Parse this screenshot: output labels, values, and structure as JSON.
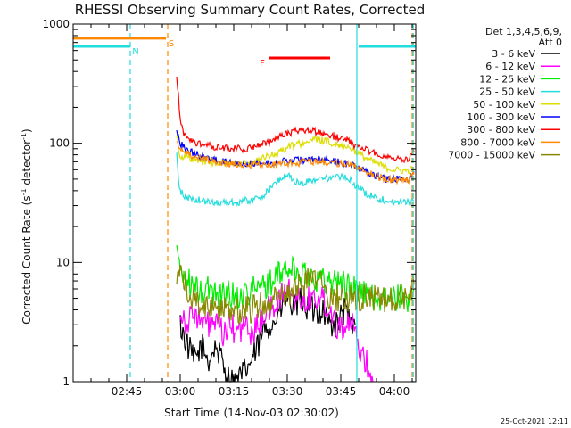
{
  "chart_data": {
    "type": "line",
    "title": "RHESSI Observing Summary Count Rates, Corrected",
    "xlabel": "Start Time (14-Nov-03 02:30:02)",
    "ylabel_main": "Corrected Count Rate (s",
    "ylabel_sup1": "-1",
    "ylabel_mid": " detector",
    "ylabel_sup2": "-1",
    "ylabel_end": ")",
    "yscale": "log",
    "ylim": [
      1,
      1000
    ],
    "xlim_minutes": [
      0,
      96
    ],
    "x_tick_labels": [
      "02:45",
      "03:00",
      "03:15",
      "03:30",
      "03:45",
      "04:00"
    ],
    "x_tick_minutes": [
      15,
      30,
      45,
      60,
      75,
      90
    ],
    "y_tick_labels": [
      "1",
      "10",
      "100",
      "1000"
    ],
    "y_tick_values": [
      1,
      10,
      100,
      1000
    ],
    "legend_header1": "Det 1,3,4,5,6,9,",
    "legend_header2": "Att 0",
    "legend_placement": "right-outside",
    "footer_date": "25-Oct-2021 12:11",
    "flag_bars": [
      {
        "label": "N",
        "color": "#22dddd",
        "segments": [
          [
            0,
            16
          ],
          [
            80,
            96
          ]
        ],
        "y": 650
      },
      {
        "label": "S",
        "color": "#ff8800",
        "segments": [
          [
            0,
            26
          ]
        ],
        "y": 760
      },
      {
        "label": "F",
        "color": "#ff0000",
        "segments": [
          [
            55,
            72
          ]
        ],
        "y": 520
      }
    ],
    "vlines": [
      {
        "x": 16,
        "color": "#22dddd",
        "style": "dashed"
      },
      {
        "x": 26.5,
        "color": "#ff8800",
        "style": "dashed"
      },
      {
        "x": 79.5,
        "color": "#22dddd",
        "style": "solid"
      },
      {
        "x": 95,
        "color": "#ff8800",
        "style": "dashed"
      },
      {
        "x": 95.3,
        "color": "#22dddd",
        "style": "dashed"
      }
    ],
    "series": [
      {
        "name": "3 - 6 keV",
        "color": "#000000",
        "x": [
          30,
          32,
          34,
          36,
          38,
          40,
          42,
          44,
          46,
          48,
          50,
          52,
          54,
          56,
          58,
          60,
          62,
          64,
          66,
          68,
          70,
          72,
          74,
          76,
          78,
          79
        ],
        "y": [
          3,
          2,
          1.5,
          2,
          1.5,
          2,
          1.4,
          1,
          1,
          1.2,
          1.5,
          2,
          3,
          3,
          4,
          5,
          4,
          5,
          4,
          4,
          4,
          3,
          3,
          4,
          3,
          3
        ]
      },
      {
        "name": "6 - 12 keV",
        "color": "#ff00ff",
        "x": [
          30,
          32,
          34,
          36,
          38,
          40,
          42,
          44,
          46,
          48,
          50,
          52,
          54,
          56,
          58,
          60,
          62,
          64,
          66,
          68,
          70,
          72,
          74,
          76,
          78,
          80,
          82,
          84
        ],
        "y": [
          4,
          3,
          4,
          3,
          3,
          3,
          2.5,
          3,
          2.5,
          3,
          2.5,
          3,
          4,
          4,
          5,
          6,
          5,
          5,
          5,
          5,
          5,
          4,
          3,
          3,
          3,
          2,
          1.5,
          1
        ]
      },
      {
        "name": "12 - 25 keV",
        "color": "#00ee00",
        "x": [
          29,
          30,
          32,
          34,
          36,
          38,
          40,
          42,
          44,
          46,
          48,
          50,
          52,
          54,
          56,
          58,
          60,
          62,
          64,
          66,
          68,
          70,
          72,
          74,
          76,
          78,
          80,
          82,
          84,
          86,
          88,
          90,
          92,
          94,
          95.5
        ],
        "y": [
          14,
          9,
          7,
          6,
          5.5,
          6,
          5.5,
          5.5,
          5.5,
          5,
          5.5,
          6,
          6,
          6.5,
          7,
          8,
          9,
          8.5,
          8,
          8,
          7.5,
          7,
          7,
          7,
          6.5,
          6,
          6,
          5.5,
          5,
          5,
          5,
          5,
          5,
          5,
          6
        ]
      },
      {
        "name": "25 - 50 keV",
        "color": "#22dddd",
        "x": [
          29,
          29.5,
          30,
          31,
          32,
          34,
          36,
          38,
          40,
          42,
          44,
          46,
          48,
          50,
          52,
          54,
          56,
          58,
          60,
          62,
          64,
          66,
          68,
          70,
          72,
          74,
          76,
          78,
          80,
          82,
          84,
          86,
          88,
          90,
          92,
          94,
          95.5
        ],
        "y": [
          80,
          50,
          40,
          36,
          35,
          34,
          33,
          32,
          32,
          32,
          32,
          32,
          33,
          33,
          35,
          38,
          44,
          50,
          55,
          48,
          45,
          48,
          50,
          52,
          50,
          52,
          52,
          48,
          42,
          38,
          36,
          34,
          33,
          32,
          32,
          32,
          33
        ]
      },
      {
        "name": "50 - 100 keV",
        "color": "#dddd00",
        "x": [
          29,
          29.5,
          30,
          32,
          34,
          36,
          38,
          40,
          42,
          44,
          46,
          48,
          50,
          52,
          54,
          56,
          58,
          60,
          62,
          64,
          66,
          68,
          70,
          72,
          74,
          76,
          78,
          80,
          82,
          84,
          86,
          88,
          90,
          92,
          94,
          95.5
        ],
        "y": [
          120,
          90,
          80,
          75,
          72,
          70,
          70,
          68,
          68,
          68,
          68,
          68,
          70,
          72,
          76,
          80,
          85,
          92,
          97,
          100,
          105,
          108,
          105,
          102,
          98,
          95,
          90,
          82,
          75,
          70,
          66,
          62,
          60,
          59,
          59,
          62
        ]
      },
      {
        "name": "100 - 300 keV",
        "color": "#0000ff",
        "x": [
          29,
          29.5,
          30,
          32,
          34,
          36,
          38,
          40,
          42,
          44,
          46,
          48,
          50,
          52,
          54,
          56,
          58,
          60,
          62,
          64,
          66,
          68,
          70,
          72,
          74,
          76,
          78,
          80,
          82,
          84,
          86,
          88,
          90,
          92,
          94,
          95.5
        ],
        "y": [
          130,
          115,
          100,
          88,
          82,
          78,
          75,
          72,
          70,
          70,
          69,
          68,
          68,
          68,
          68,
          69,
          70,
          71,
          72,
          72,
          73,
          73,
          72,
          71,
          70,
          68,
          66,
          62,
          58,
          55,
          52,
          50,
          50,
          50,
          50,
          58
        ]
      },
      {
        "name": "300 - 800 keV",
        "color": "#ff0000",
        "x": [
          29,
          29.5,
          30,
          31,
          32,
          34,
          36,
          38,
          40,
          42,
          44,
          46,
          48,
          50,
          52,
          54,
          56,
          58,
          60,
          62,
          64,
          66,
          68,
          70,
          72,
          74,
          76,
          78,
          80,
          82,
          84,
          86,
          88,
          90,
          92,
          94,
          95.5
        ],
        "y": [
          350,
          250,
          150,
          120,
          110,
          102,
          98,
          95,
          93,
          92,
          91,
          90,
          90,
          92,
          95,
          100,
          106,
          113,
          120,
          125,
          130,
          128,
          125,
          120,
          116,
          112,
          108,
          100,
          92,
          88,
          84,
          80,
          77,
          75,
          74,
          75,
          85
        ]
      },
      {
        "name": "800 - 7000 keV",
        "color": "#ff8800",
        "x": [
          29,
          29.5,
          30,
          32,
          34,
          36,
          38,
          40,
          42,
          44,
          46,
          48,
          50,
          52,
          54,
          56,
          58,
          60,
          62,
          64,
          66,
          68,
          70,
          72,
          74,
          76,
          78,
          80,
          82,
          84,
          86,
          88,
          90,
          92,
          94,
          95.5
        ],
        "y": [
          110,
          95,
          90,
          82,
          78,
          75,
          72,
          70,
          68,
          67,
          66,
          66,
          66,
          66,
          66,
          66,
          67,
          68,
          68,
          69,
          70,
          70,
          70,
          69,
          68,
          67,
          65,
          62,
          58,
          55,
          52,
          50,
          49,
          49,
          49,
          55
        ]
      },
      {
        "name": "7000 - 15000 keV",
        "color": "#888800",
        "x": [
          29,
          30,
          32,
          34,
          36,
          38,
          40,
          42,
          44,
          46,
          48,
          50,
          52,
          54,
          56,
          58,
          60,
          62,
          64,
          66,
          68,
          70,
          72,
          74,
          76,
          78,
          80,
          82,
          84,
          86,
          88,
          90,
          92,
          94,
          95.5
        ],
        "y": [
          7,
          8,
          6,
          5,
          4.5,
          4,
          4,
          4,
          4,
          4,
          4,
          4,
          4.5,
          4.5,
          5,
          5,
          5,
          6,
          6.5,
          7,
          7,
          6,
          5,
          5,
          5,
          5,
          5,
          5,
          5,
          5,
          5,
          5,
          5,
          5,
          6.5
        ]
      }
    ]
  }
}
